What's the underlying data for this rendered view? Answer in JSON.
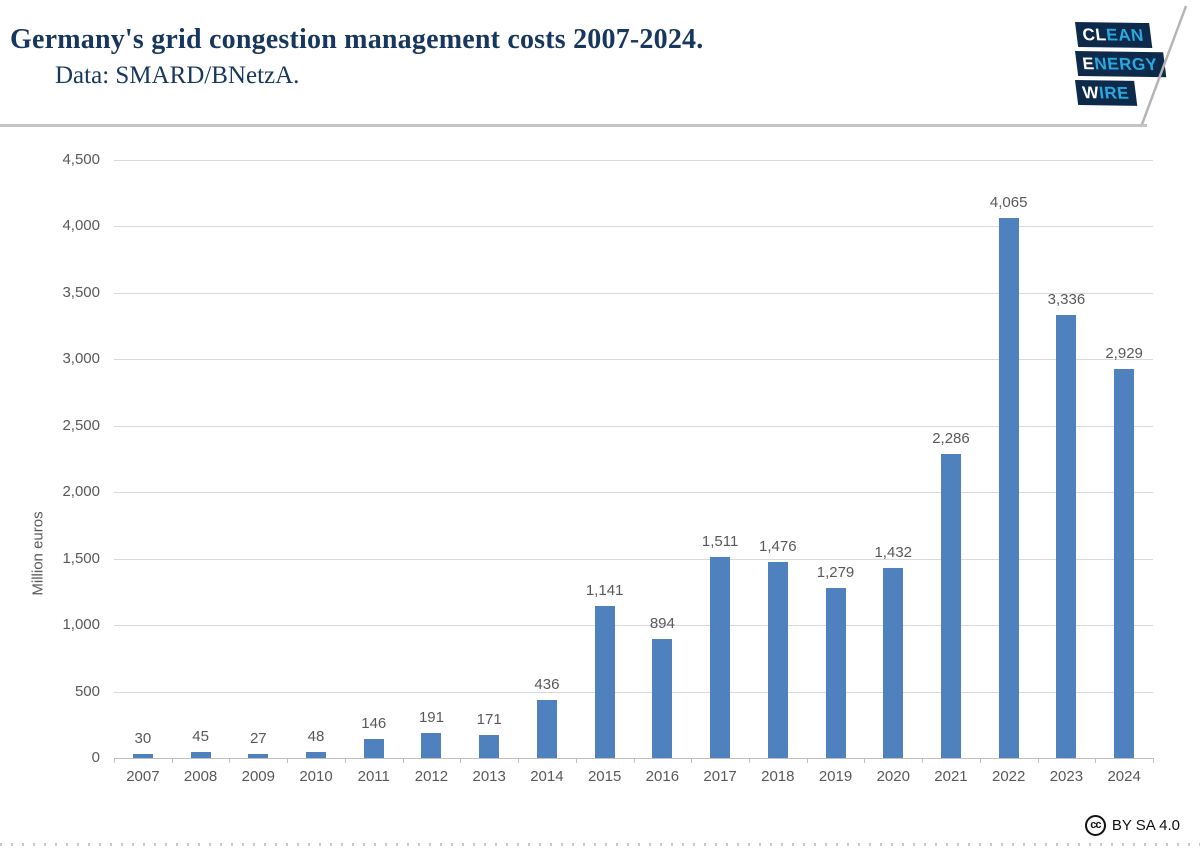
{
  "header": {
    "title": "Germany's grid congestion management costs 2007-2024.",
    "subtitle": "Data: SMARD/BNetzA.",
    "title_color": "#17375e"
  },
  "logo": {
    "lines": [
      {
        "white": "CL",
        "blue": "EAN"
      },
      {
        "white": "E",
        "blue": "NERGY"
      },
      {
        "white": "W",
        "blue": "IRE"
      }
    ],
    "navy": "#0d2a4a",
    "light_blue": "#29a9e1"
  },
  "chart_data": {
    "type": "bar",
    "title": "Germany's grid congestion management costs 2007-2024.",
    "categories": [
      "2007",
      "2008",
      "2009",
      "2010",
      "2011",
      "2012",
      "2013",
      "2014",
      "2015",
      "2016",
      "2017",
      "2018",
      "2019",
      "2020",
      "2021",
      "2022",
      "2023",
      "2024"
    ],
    "values": [
      30,
      45,
      27,
      48,
      146,
      191,
      171,
      436,
      1141,
      894,
      1511,
      1476,
      1279,
      1432,
      2286,
      4065,
      3336,
      2929
    ],
    "value_labels": [
      "30",
      "45",
      "27",
      "48",
      "146",
      "191",
      "171",
      "436",
      "1,141",
      "894",
      "1,511",
      "1,476",
      "1,279",
      "1,432",
      "2,286",
      "4,065",
      "3,336",
      "2,929"
    ],
    "xlabel": "",
    "ylabel": "Million euros",
    "ylim": [
      0,
      4500
    ],
    "ytick_step": 500,
    "ytick_labels": [
      "0",
      "500",
      "1,000",
      "1,500",
      "2,000",
      "2,500",
      "3,000",
      "3,500",
      "4,000",
      "4,500"
    ],
    "bar_color": "#4e81bd",
    "grid": true,
    "legend_position": "none"
  },
  "footer": {
    "cc_glyph": "cc",
    "license": "BY SA 4.0"
  }
}
